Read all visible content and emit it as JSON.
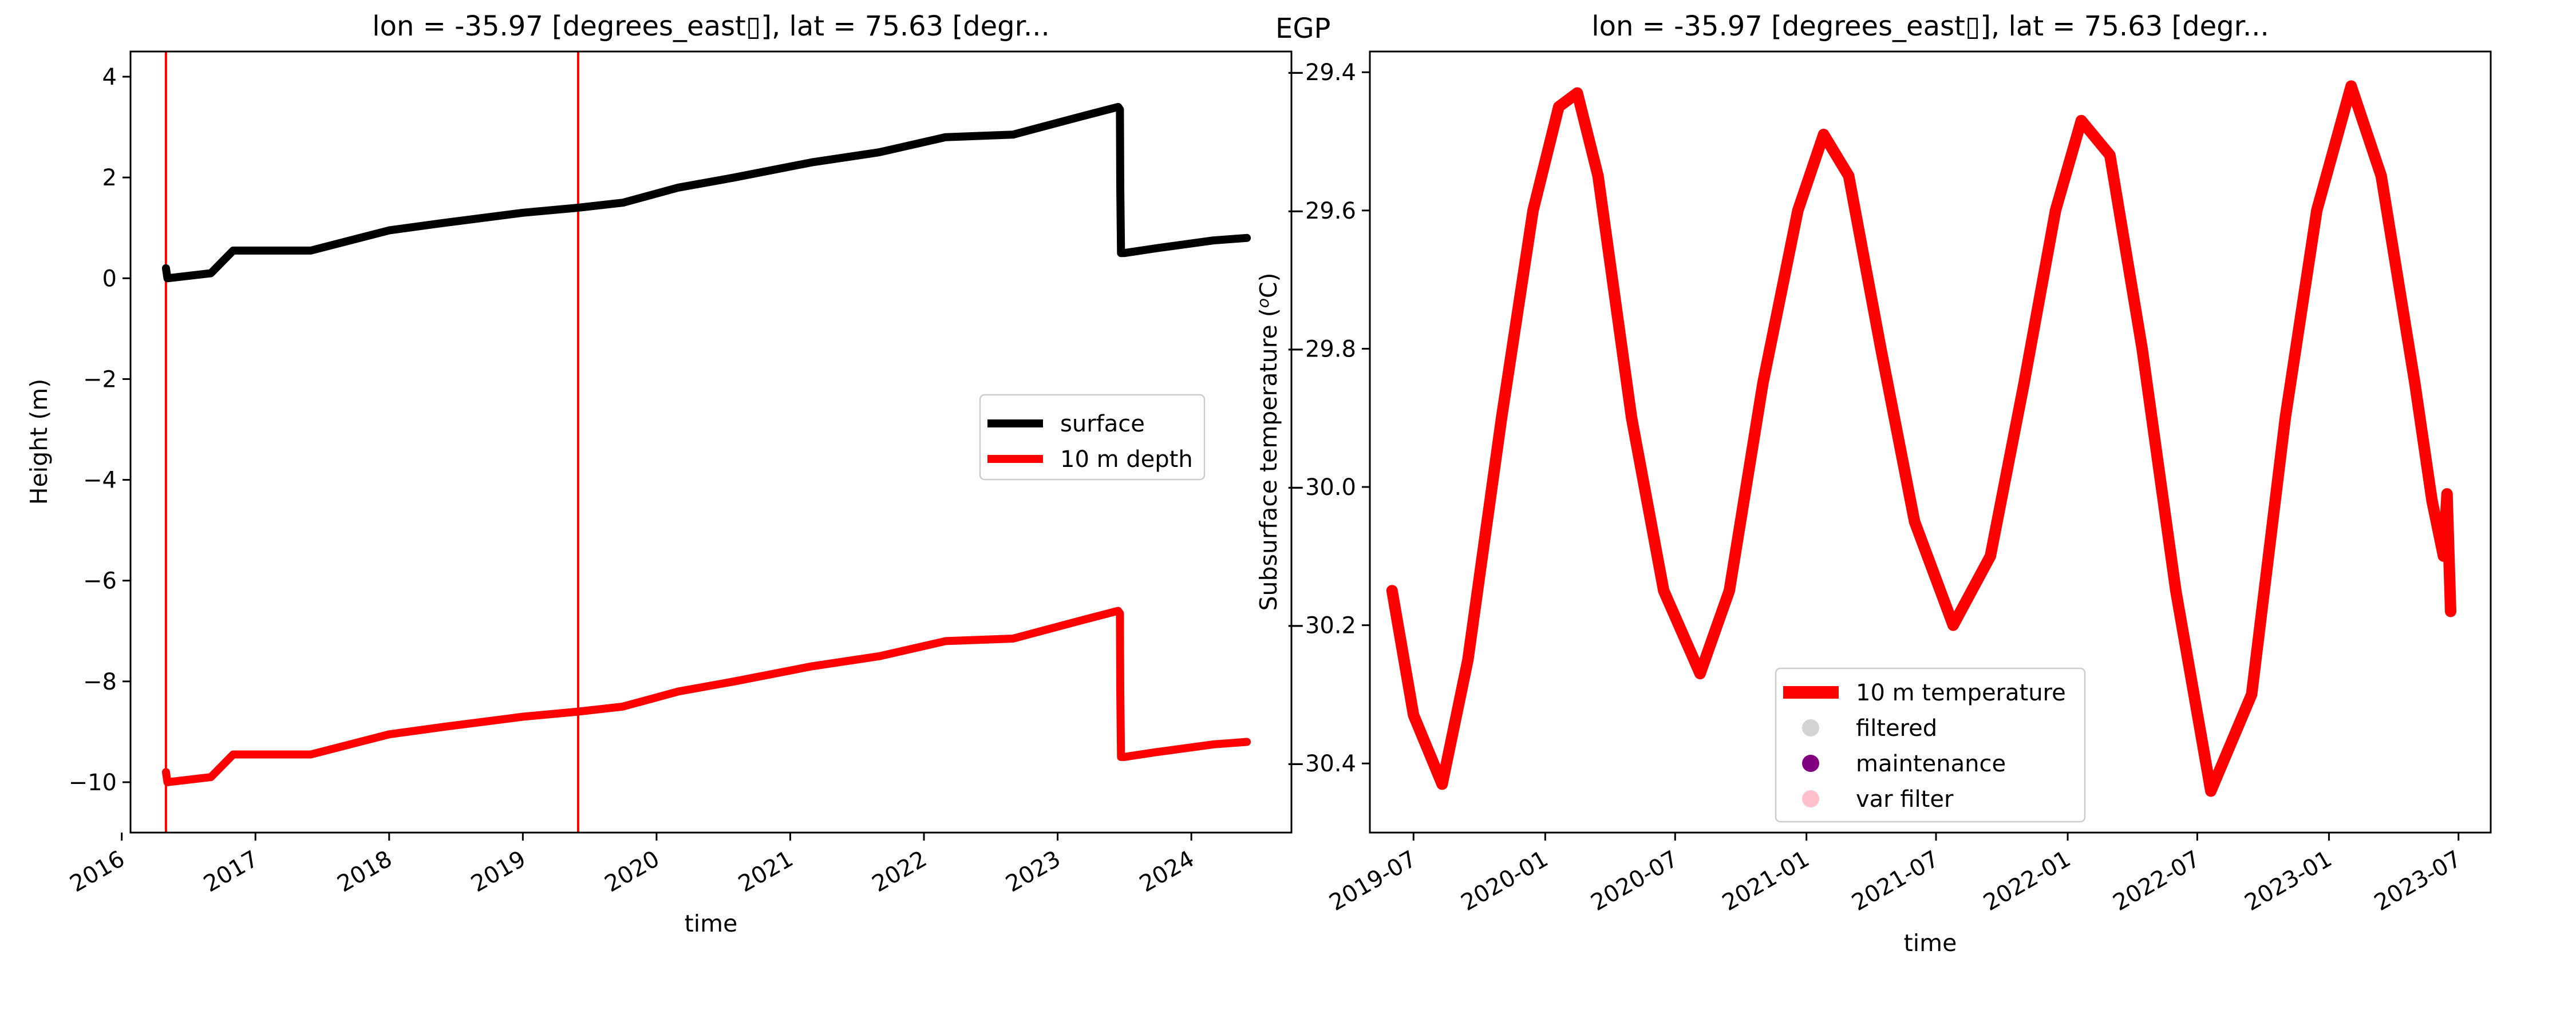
{
  "chart_data": [
    {
      "type": "line",
      "title": "lon = -35.97 [degrees_east▯], lat = 75.63 [degr...",
      "xlabel": "time",
      "ylabel": "Height (m)",
      "xlim": [
        "2016-01-25",
        "2024-10-01"
      ],
      "ylim": [
        -11.0,
        4.5
      ],
      "xticks": [
        "2016",
        "2017",
        "2018",
        "2019",
        "2020",
        "2021",
        "2022",
        "2023",
        "2024"
      ],
      "yticks": [
        4,
        2,
        0,
        -2,
        -4,
        -6,
        -8,
        -10
      ],
      "legend_position": "right",
      "vlines": [
        "2016-05-01",
        "2019-06-01"
      ],
      "vline_color": "#ff0000",
      "series": [
        {
          "name": "surface",
          "color": "#000000",
          "x": [
            "2016-05-01",
            "2016-05-05",
            "2016-09-01",
            "2016-11-01",
            "2017-06-01",
            "2018-01-01",
            "2018-06-01",
            "2019-01-01",
            "2019-06-01",
            "2019-10-01",
            "2020-03-01",
            "2020-08-01",
            "2021-03-01",
            "2021-09-01",
            "2022-03-01",
            "2022-09-01",
            "2023-03-01",
            "2023-06-15",
            "2023-06-20",
            "2023-06-21",
            "2023-06-23",
            "2023-07-01",
            "2023-10-01",
            "2024-03-01",
            "2024-06-01"
          ],
          "values": [
            0.2,
            0.0,
            0.1,
            0.55,
            0.55,
            0.95,
            1.1,
            1.3,
            1.4,
            1.5,
            1.8,
            2.0,
            2.3,
            2.5,
            2.8,
            2.85,
            3.2,
            3.4,
            3.35,
            1.8,
            0.5,
            0.5,
            0.6,
            0.75,
            0.8
          ]
        },
        {
          "name": "10 m depth",
          "color": "#ff0000",
          "x": [
            "2016-05-01",
            "2016-05-05",
            "2016-09-01",
            "2016-11-01",
            "2017-06-01",
            "2018-01-01",
            "2018-06-01",
            "2019-01-01",
            "2019-06-01",
            "2019-10-01",
            "2020-03-01",
            "2020-08-01",
            "2021-03-01",
            "2021-09-01",
            "2022-03-01",
            "2022-09-01",
            "2023-03-01",
            "2023-06-15",
            "2023-06-20",
            "2023-06-21",
            "2023-06-23",
            "2023-07-01",
            "2023-10-01",
            "2024-03-01",
            "2024-06-01"
          ],
          "values": [
            -9.8,
            -10.0,
            -9.9,
            -9.45,
            -9.45,
            -9.05,
            -8.9,
            -8.7,
            -8.6,
            -8.5,
            -8.2,
            -8.0,
            -7.7,
            -7.5,
            -7.2,
            -7.15,
            -6.8,
            -6.6,
            -6.65,
            -8.2,
            -9.5,
            -9.5,
            -9.4,
            -9.25,
            -9.2
          ]
        }
      ]
    },
    {
      "type": "line",
      "panel_label": "EGP",
      "title": "lon = -35.97 [degrees_east▯], lat = 75.63 [degr...",
      "xlabel": "time",
      "ylabel": "Subsurface temperature (°C)",
      "ylabel_main": "Subsurface temperature (",
      "ylabel_sup": "o",
      "ylabel_unit": "C)",
      "xlim": [
        "2019-05-01",
        "2023-08-15"
      ],
      "ylim": [
        -30.5,
        -29.37
      ],
      "xticks": [
        "2019-07",
        "2020-01",
        "2020-07",
        "2021-01",
        "2021-07",
        "2022-01",
        "2022-07",
        "2023-01",
        "2023-07"
      ],
      "yticks": [
        -29.4,
        -29.6,
        -29.8,
        -30.0,
        -30.2,
        -30.4
      ],
      "legend_position": "lower center",
      "legend_entries": [
        {
          "name": "10 m temperature",
          "kind": "line",
          "color": "#ff0000"
        },
        {
          "name": "filtered",
          "kind": "marker",
          "color": "#d3d3d3"
        },
        {
          "name": "maintenance",
          "kind": "marker",
          "color": "#800080"
        },
        {
          "name": "var filter",
          "kind": "marker",
          "color": "#ffc0cb"
        }
      ],
      "series": [
        {
          "name": "10 m temperature",
          "color": "#ff0000",
          "x": [
            "2019-06-01",
            "2019-07-01",
            "2019-08-10",
            "2019-09-15",
            "2019-11-01",
            "2019-12-15",
            "2020-01-20",
            "2020-02-15",
            "2020-03-15",
            "2020-05-01",
            "2020-06-15",
            "2020-08-05",
            "2020-09-15",
            "2020-11-01",
            "2020-12-20",
            "2021-01-25",
            "2021-03-01",
            "2021-04-15",
            "2021-06-01",
            "2021-07-25",
            "2021-09-15",
            "2021-11-01",
            "2021-12-15",
            "2022-01-20",
            "2022-03-01",
            "2022-04-15",
            "2022-06-01",
            "2022-07-20",
            "2022-09-15",
            "2022-11-01",
            "2022-12-15",
            "2023-02-01",
            "2023-03-15",
            "2023-05-01",
            "2023-05-25",
            "2023-06-10",
            "2023-06-15",
            "2023-06-20"
          ],
          "values": [
            -30.15,
            -30.33,
            -30.43,
            -30.25,
            -29.9,
            -29.6,
            -29.45,
            -29.43,
            -29.55,
            -29.9,
            -30.15,
            -30.27,
            -30.15,
            -29.85,
            -29.6,
            -29.49,
            -29.55,
            -29.8,
            -30.05,
            -30.2,
            -30.1,
            -29.85,
            -29.6,
            -29.47,
            -29.52,
            -29.8,
            -30.15,
            -30.44,
            -30.3,
            -29.9,
            -29.6,
            -29.42,
            -29.55,
            -29.85,
            -30.02,
            -30.1,
            -30.01,
            -30.18
          ]
        }
      ]
    }
  ]
}
